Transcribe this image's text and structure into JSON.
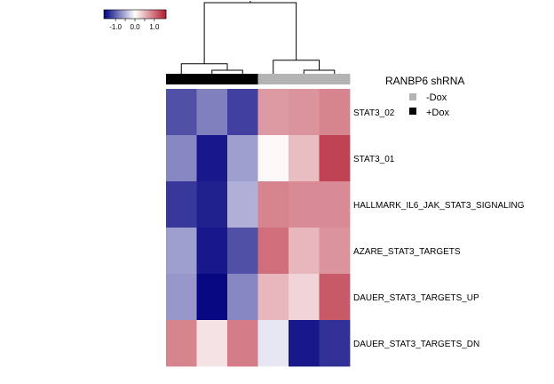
{
  "chart_data": {
    "type": "heatmap",
    "rows": [
      "STAT3_02",
      "STAT3_01",
      "HALLMARK_IL6_JAK_STAT3_SIGNALING",
      "AZARE_STAT3_TARGETS",
      "DAUER_STAT3_TARGETS_UP",
      "DAUER_STAT3_TARGETS_DN"
    ],
    "column_groups": [
      "+Dox",
      "+Dox",
      "+Dox",
      "-Dox",
      "-Dox",
      "-Dox"
    ],
    "values": [
      [
        -1.1,
        -0.8,
        -1.2,
        0.7,
        0.75,
        0.85
      ],
      [
        -0.75,
        -1.45,
        -0.6,
        0.05,
        0.45,
        1.3
      ],
      [
        -1.25,
        -1.4,
        -0.5,
        0.85,
        0.8,
        0.8
      ],
      [
        -0.6,
        -1.45,
        -1.1,
        1.0,
        0.5,
        0.75
      ],
      [
        -0.65,
        -1.55,
        -0.75,
        0.5,
        0.3,
        1.15
      ],
      [
        0.85,
        0.2,
        0.9,
        -0.15,
        -1.45,
        -1.3
      ]
    ],
    "color_scale": {
      "min": -1.6,
      "max": 1.6,
      "ticks": [
        "-1.0",
        "0.0",
        "1.0"
      ],
      "low_color": "#00007f",
      "mid_color": "#ffffff",
      "high_color": "#b2182b"
    },
    "legend": {
      "title": "RANBP6 shRNA",
      "entries": [
        {
          "label": "-Dox",
          "color": "#b3b3b3"
        },
        {
          "label": "+Dox",
          "color": "#000000"
        }
      ]
    },
    "column_dendrogram": true
  }
}
